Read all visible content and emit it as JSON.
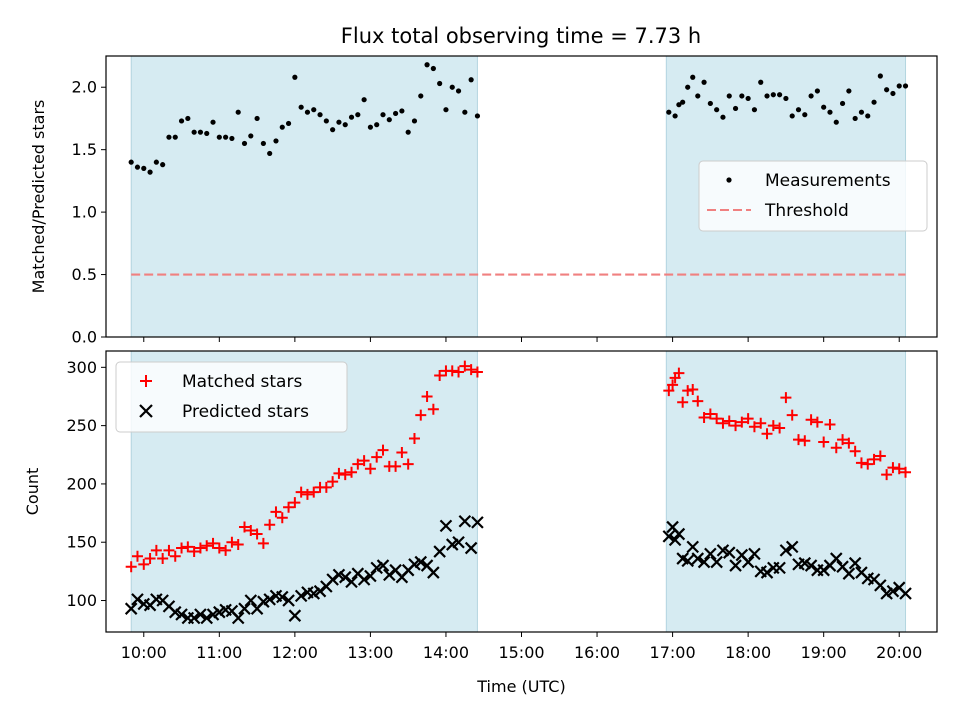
{
  "title": "Flux total observing time = 7.73 h",
  "chart_data": [
    {
      "type": "scatter",
      "ylabel": "Matched/Predicted stars",
      "xlabel": "",
      "ylim": [
        0,
        2.25
      ],
      "yticks": [
        "0.0",
        "0.5",
        "1.0",
        "1.5",
        "2.0"
      ],
      "legend_position": "center-right",
      "series": [
        {
          "name": "Measurements",
          "color": "#000000",
          "marker": "dot",
          "x": [
            "09:50",
            "09:55",
            "10:00",
            "10:05",
            "10:10",
            "10:15",
            "10:20",
            "10:25",
            "10:30",
            "10:35",
            "10:40",
            "10:45",
            "10:50",
            "10:55",
            "11:00",
            "11:05",
            "11:10",
            "11:15",
            "11:20",
            "11:25",
            "11:30",
            "11:35",
            "11:40",
            "11:45",
            "11:50",
            "11:55",
            "12:00",
            "12:05",
            "12:10",
            "12:15",
            "12:20",
            "12:25",
            "12:30",
            "12:35",
            "12:40",
            "12:45",
            "12:50",
            "12:55",
            "13:00",
            "13:05",
            "13:10",
            "13:15",
            "13:20",
            "13:25",
            "13:30",
            "13:35",
            "13:40",
            "13:45",
            "13:50",
            "13:55",
            "14:00",
            "14:05",
            "14:10",
            "14:15",
            "14:20",
            "14:25",
            "16:57",
            "17:02",
            "17:05",
            "17:08",
            "17:12",
            "17:16",
            "17:20",
            "17:25",
            "17:30",
            "17:35",
            "17:40",
            "17:45",
            "17:50",
            "17:55",
            "18:00",
            "18:05",
            "18:10",
            "18:15",
            "18:20",
            "18:25",
            "18:30",
            "18:35",
            "18:40",
            "18:45",
            "18:50",
            "18:55",
            "19:00",
            "19:05",
            "19:10",
            "19:15",
            "19:20",
            "19:25",
            "19:30",
            "19:35",
            "19:40",
            "19:45",
            "19:50",
            "19:55",
            "20:00",
            "20:05"
          ],
          "y": [
            1.4,
            1.36,
            1.35,
            1.32,
            1.4,
            1.38,
            1.6,
            1.6,
            1.73,
            1.75,
            1.64,
            1.64,
            1.63,
            1.72,
            1.6,
            1.6,
            1.59,
            1.8,
            1.55,
            1.61,
            1.75,
            1.55,
            1.47,
            1.57,
            1.68,
            1.71,
            2.08,
            1.84,
            1.8,
            1.82,
            1.78,
            1.73,
            1.66,
            1.72,
            1.7,
            1.76,
            1.78,
            1.9,
            1.68,
            1.7,
            1.78,
            1.74,
            1.79,
            1.81,
            1.64,
            1.73,
            1.93,
            2.18,
            2.15,
            2.03,
            1.82,
            2.0,
            1.97,
            1.8,
            2.06,
            1.77,
            1.8,
            1.77,
            1.86,
            1.88,
            2.0,
            2.08,
            1.93,
            2.04,
            1.87,
            1.82,
            1.76,
            1.93,
            1.83,
            1.93,
            1.91,
            1.82,
            2.04,
            1.93,
            1.94,
            1.94,
            1.91,
            1.77,
            1.82,
            1.78,
            1.93,
            1.97,
            1.84,
            1.8,
            1.72,
            1.87,
            1.97,
            1.75,
            1.8,
            1.77,
            1.88,
            2.09,
            1.98,
            1.95,
            2.01,
            2.01
          ]
        },
        {
          "name": "Threshold",
          "color": "#f08080",
          "style": "dashed",
          "x": [
            "09:50",
            "20:05"
          ],
          "y": [
            0.5,
            0.5
          ]
        }
      ]
    },
    {
      "type": "scatter",
      "ylabel": "Count",
      "xlabel": "Time (UTC)",
      "ylim": [
        73,
        314
      ],
      "yticks": [
        "100",
        "150",
        "200",
        "250",
        "300"
      ],
      "xticks": [
        "10:00",
        "11:00",
        "12:00",
        "13:00",
        "14:00",
        "15:00",
        "16:00",
        "17:00",
        "18:00",
        "19:00",
        "20:00"
      ],
      "legend_position": "upper-left",
      "series": [
        {
          "name": "Matched stars",
          "color": "#ff0000",
          "marker": "plus",
          "x": [
            "09:50",
            "09:55",
            "10:00",
            "10:05",
            "10:10",
            "10:15",
            "10:20",
            "10:25",
            "10:30",
            "10:35",
            "10:40",
            "10:45",
            "10:50",
            "10:55",
            "11:00",
            "11:05",
            "11:10",
            "11:15",
            "11:20",
            "11:25",
            "11:30",
            "11:35",
            "11:40",
            "11:45",
            "11:50",
            "11:55",
            "12:00",
            "12:05",
            "12:10",
            "12:15",
            "12:20",
            "12:25",
            "12:30",
            "12:35",
            "12:40",
            "12:45",
            "12:50",
            "12:55",
            "13:00",
            "13:05",
            "13:10",
            "13:15",
            "13:20",
            "13:25",
            "13:30",
            "13:35",
            "13:40",
            "13:45",
            "13:50",
            "13:55",
            "14:00",
            "14:05",
            "14:10",
            "14:15",
            "14:20",
            "14:25",
            "16:57",
            "17:00",
            "17:02",
            "17:05",
            "17:08",
            "17:12",
            "17:16",
            "17:20",
            "17:25",
            "17:30",
            "17:35",
            "17:40",
            "17:45",
            "17:50",
            "17:55",
            "18:00",
            "18:05",
            "18:10",
            "18:15",
            "18:20",
            "18:25",
            "18:30",
            "18:35",
            "18:40",
            "18:45",
            "18:50",
            "18:55",
            "19:00",
            "19:05",
            "19:10",
            "19:15",
            "19:20",
            "19:25",
            "19:30",
            "19:35",
            "19:40",
            "19:45",
            "19:50",
            "19:55",
            "20:00",
            "20:05"
          ],
          "y": [
            129,
            138,
            131,
            136,
            143,
            136,
            143,
            138,
            145,
            146,
            142,
            145,
            147,
            149,
            145,
            143,
            150,
            148,
            163,
            160,
            157,
            149,
            165,
            176,
            171,
            180,
            184,
            193,
            191,
            193,
            197,
            197,
            202,
            209,
            208,
            210,
            217,
            220,
            213,
            223,
            229,
            215,
            215,
            227,
            217,
            239,
            259,
            275,
            264,
            293,
            297,
            297,
            296,
            301,
            298,
            296,
            280,
            285,
            291,
            295,
            270,
            280,
            281,
            271,
            257,
            260,
            256,
            252,
            254,
            250,
            253,
            256,
            249,
            252,
            243,
            250,
            248,
            274,
            259,
            238,
            237,
            255,
            253,
            236,
            251,
            231,
            238,
            235,
            228,
            218,
            217,
            221,
            224,
            208,
            214,
            213,
            210
          ]
        },
        {
          "name": "Predicted stars",
          "color": "#000000",
          "marker": "x",
          "x": [
            "09:50",
            "09:55",
            "10:00",
            "10:05",
            "10:10",
            "10:15",
            "10:20",
            "10:25",
            "10:30",
            "10:35",
            "10:40",
            "10:45",
            "10:50",
            "10:55",
            "11:00",
            "11:05",
            "11:10",
            "11:15",
            "11:20",
            "11:25",
            "11:30",
            "11:35",
            "11:40",
            "11:45",
            "11:50",
            "11:55",
            "12:00",
            "12:05",
            "12:10",
            "12:15",
            "12:20",
            "12:25",
            "12:30",
            "12:35",
            "12:40",
            "12:45",
            "12:50",
            "12:55",
            "13:00",
            "13:05",
            "13:10",
            "13:15",
            "13:20",
            "13:25",
            "13:30",
            "13:35",
            "13:40",
            "13:45",
            "13:50",
            "13:55",
            "14:00",
            "14:05",
            "14:10",
            "14:15",
            "14:20",
            "14:25",
            "16:57",
            "17:00",
            "17:02",
            "17:05",
            "17:08",
            "17:12",
            "17:16",
            "17:20",
            "17:25",
            "17:30",
            "17:35",
            "17:40",
            "17:45",
            "17:50",
            "17:55",
            "18:00",
            "18:05",
            "18:10",
            "18:15",
            "18:20",
            "18:25",
            "18:30",
            "18:35",
            "18:40",
            "18:45",
            "18:50",
            "18:55",
            "19:00",
            "19:05",
            "19:10",
            "19:15",
            "19:20",
            "19:25",
            "19:30",
            "19:35",
            "19:40",
            "19:45",
            "19:50",
            "19:55",
            "20:00",
            "20:05"
          ],
          "y": [
            93,
            101,
            97,
            96,
            101,
            100,
            95,
            90,
            88,
            85,
            85,
            88,
            85,
            88,
            90,
            92,
            91,
            85,
            93,
            100,
            93,
            99,
            101,
            104,
            103,
            100,
            87,
            104,
            107,
            106,
            108,
            112,
            118,
            122,
            120,
            116,
            123,
            118,
            121,
            128,
            130,
            122,
            126,
            120,
            126,
            131,
            133,
            130,
            124,
            142,
            164,
            148,
            150,
            168,
            145,
            167,
            155,
            163,
            152,
            157,
            136,
            134,
            146,
            136,
            133,
            140,
            133,
            143,
            141,
            130,
            139,
            133,
            140,
            125,
            124,
            128,
            128,
            143,
            146,
            131,
            132,
            130,
            126,
            126,
            130,
            136,
            129,
            123,
            132,
            124,
            119,
            118,
            113,
            106,
            108,
            111,
            106
          ]
        }
      ]
    }
  ]
}
